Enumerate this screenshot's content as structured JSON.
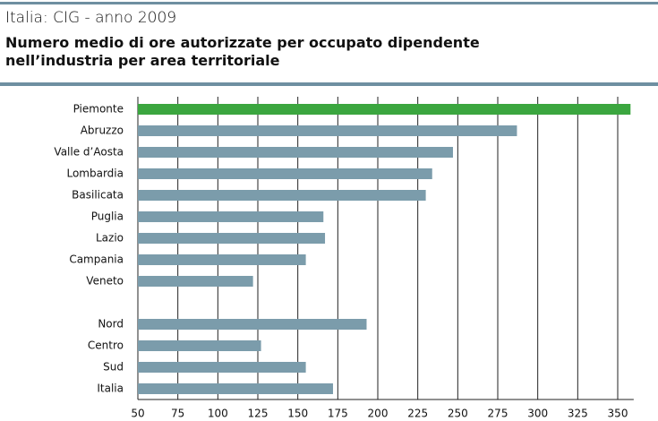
{
  "chart_data": {
    "type": "barh",
    "title": "Italia: CIG - anno 2009",
    "subtitle": "Numero medio di ore autorizzate per occupato dipendente nell’industria per area territoriale",
    "categories": [
      "Piemonte",
      "Abruzzo",
      "Valle d’Aosta",
      "Lombardia",
      "Basilicata",
      "Puglia",
      "Lazio",
      "Campania",
      "Veneto",
      null,
      "Nord",
      "Centro",
      "Sud",
      "Italia"
    ],
    "values": [
      358,
      287,
      247,
      234,
      230,
      166,
      167,
      155,
      122,
      null,
      193,
      127,
      155,
      172
    ],
    "colors": [
      "#3ba63f",
      "#7b9cab",
      "#7b9cab",
      "#7b9cab",
      "#7b9cab",
      "#7b9cab",
      "#7b9cab",
      "#7b9cab",
      "#7b9cab",
      null,
      "#7b9cab",
      "#7b9cab",
      "#7b9cab",
      "#7b9cab"
    ],
    "xlim": [
      50,
      360
    ],
    "xticks": [
      50,
      75,
      100,
      125,
      150,
      175,
      200,
      225,
      250,
      275,
      300,
      325,
      350
    ],
    "grid": true
  }
}
